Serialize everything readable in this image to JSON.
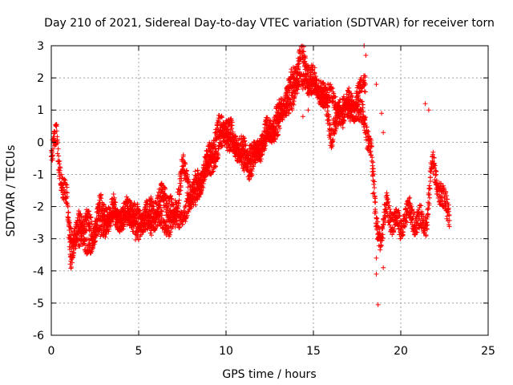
{
  "chart_data": {
    "type": "scatter",
    "title": "Day 210 of 2021, Sidereal Day-to-day VTEC variation (SDTVAR) for receiver torn",
    "xlabel": "GPS time / hours",
    "ylabel": "SDTVAR / TECUs",
    "xlim": [
      0,
      25
    ],
    "ylim": [
      -6,
      3
    ],
    "x_ticks": [
      0,
      5,
      10,
      15,
      20,
      25
    ],
    "x_tick_labels": [
      "0",
      "5",
      "10",
      "15",
      "20",
      "25"
    ],
    "y_ticks": [
      3,
      2,
      1,
      0,
      -1,
      -2,
      -3,
      -4,
      -5,
      -6
    ],
    "y_tick_labels": [
      "3",
      "2",
      "1",
      "0",
      "-1",
      "-2",
      "-3",
      "-4",
      "-5",
      "-6"
    ],
    "grid": true,
    "marker": "+",
    "series": [
      {
        "name": "SDTVAR",
        "color": "#ff0000",
        "trend": {
          "x": [
            0.0,
            0.3,
            0.5,
            0.7,
            0.9,
            1.1,
            1.3,
            1.6,
            2.0,
            2.4,
            2.7,
            3.0,
            3.5,
            4.0,
            4.5,
            5.0,
            5.5,
            6.0,
            6.5,
            7.0,
            7.5,
            8.0,
            8.5,
            9.0,
            9.5,
            10.0,
            10.5,
            11.0,
            11.5,
            12.0,
            12.5,
            13.0,
            13.5,
            14.0,
            14.3,
            14.6,
            15.0,
            15.5,
            16.0,
            16.5,
            17.0,
            17.5,
            18.0,
            18.3,
            18.6,
            18.9,
            19.2,
            19.5,
            20.0,
            20.5,
            21.0,
            21.5,
            21.8,
            22.1,
            22.4,
            22.8
          ],
          "y": [
            -0.5,
            0.2,
            -0.8,
            -1.5,
            -1.8,
            -3.5,
            -3.0,
            -2.6,
            -2.4,
            -2.9,
            -2.0,
            -2.3,
            -2.1,
            -2.4,
            -2.0,
            -2.5,
            -2.2,
            -2.0,
            -1.6,
            -2.4,
            -0.8,
            -1.6,
            -1.2,
            -0.5,
            0.3,
            0.5,
            0.0,
            -0.3,
            -0.8,
            0.0,
            0.4,
            0.8,
            1.5,
            2.2,
            2.8,
            2.3,
            1.9,
            1.7,
            0.3,
            0.8,
            1.2,
            1.0,
            0.6,
            -0.3,
            -2.5,
            -3.0,
            -2.0,
            -2.4,
            -2.6,
            -2.2,
            -2.5,
            -2.4,
            -0.6,
            -1.3,
            -1.8,
            -2.2
          ]
        },
        "secondary_trend": {
          "x": [
            1.0,
            2.0,
            3.0,
            4.0,
            5.0,
            6.0,
            7.0,
            8.0,
            9.0,
            10.0,
            11.0,
            12.0,
            13.0,
            14.0,
            14.5,
            15.0,
            16.0,
            17.0,
            18.0
          ],
          "y": [
            -2.8,
            -3.2,
            -2.6,
            -2.3,
            -2.7,
            -2.4,
            -2.6,
            -1.9,
            -0.8,
            0.2,
            -0.5,
            -0.2,
            0.6,
            1.6,
            2.0,
            1.6,
            1.4,
            0.9,
            1.9
          ]
        },
        "outliers": [
          {
            "x": 17.9,
            "y": 3.0
          },
          {
            "x": 18.0,
            "y": 2.7
          },
          {
            "x": 18.6,
            "y": 1.8
          },
          {
            "x": 18.9,
            "y": 0.9
          },
          {
            "x": 19.0,
            "y": 0.3
          },
          {
            "x": 18.4,
            "y": -1.6
          },
          {
            "x": 18.5,
            "y": -2.2
          },
          {
            "x": 18.6,
            "y": -3.6
          },
          {
            "x": 18.6,
            "y": -4.1
          },
          {
            "x": 18.7,
            "y": -5.05
          },
          {
            "x": 19.0,
            "y": -3.9
          },
          {
            "x": 14.4,
            "y": 0.8
          },
          {
            "x": 14.7,
            "y": 1.0
          },
          {
            "x": 21.4,
            "y": 1.2
          },
          {
            "x": 21.6,
            "y": 1.0
          },
          {
            "x": 22.0,
            "y": -0.9
          }
        ]
      }
    ]
  }
}
